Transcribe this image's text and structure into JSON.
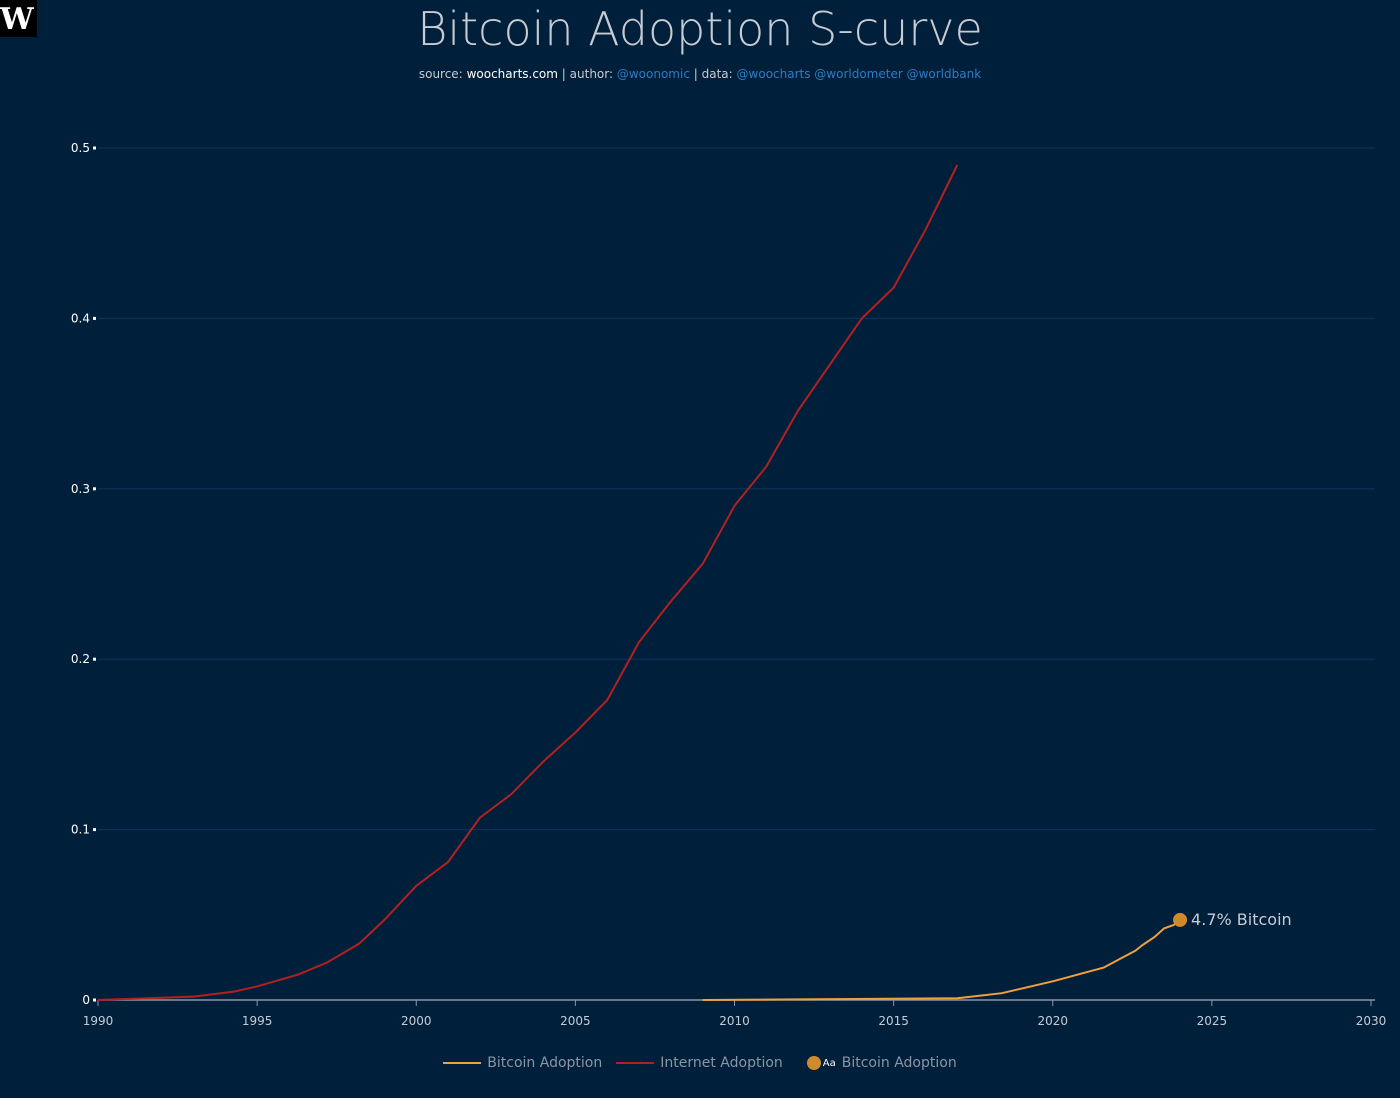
{
  "logo": "W",
  "chart_data": {
    "type": "line",
    "title": "Bitcoin Adoption S-curve",
    "subtitle": {
      "source_label": "source:",
      "source": "woocharts.com",
      "author_label": "| author:",
      "author": "@woonomic",
      "data_label": "| data:",
      "data_sources": "@woocharts @worldometer @worldbank"
    },
    "xlim": [
      1990,
      2030
    ],
    "ylim": [
      0,
      0.5
    ],
    "xticks": [
      "1990",
      "1995",
      "2000",
      "2005",
      "2010",
      "2015",
      "2020",
      "2025",
      "2030"
    ],
    "yticks": [
      "0",
      "0.1",
      "0.2",
      "0.3",
      "0.4",
      "0.5"
    ],
    "grid": true,
    "legend_placement": "bottom",
    "series": [
      {
        "name": "Bitcoin Adoption",
        "color": "#f0a03c",
        "x": [
          2009,
          2017,
          2018.4,
          2020,
          2021.6,
          2022.2,
          2022.6,
          2022.8,
          2023.2,
          2023.5,
          2023.8,
          2024
        ],
        "y": [
          0,
          0.001,
          0.004,
          0.011,
          0.019,
          0.025,
          0.029,
          0.032,
          0.037,
          0.042,
          0.044,
          0.047
        ]
      },
      {
        "name": "Internet Adoption",
        "color": "#b3201f",
        "x": [
          1990,
          1993,
          1994.3,
          1995,
          1996.3,
          1997.2,
          1998.2,
          1999,
          2000,
          2001,
          2002,
          2003,
          2004,
          2005,
          2006,
          2007,
          2008,
          2009,
          2010,
          2011,
          2012,
          2013,
          2014,
          2015,
          2016,
          2017
        ],
        "y": [
          0,
          0.002,
          0.005,
          0.008,
          0.015,
          0.022,
          0.033,
          0.047,
          0.067,
          0.081,
          0.107,
          0.121,
          0.14,
          0.157,
          0.176,
          0.21,
          0.234,
          0.256,
          0.29,
          0.313,
          0.346,
          0.373,
          0.4,
          0.418,
          0.452,
          0.49
        ]
      }
    ],
    "annotation": {
      "text": "4.7% Bitcoin",
      "x": 2024,
      "y": 0.047,
      "color": "#d08a2e"
    },
    "legend": [
      "Bitcoin Adoption",
      "Internet Adoption",
      "Bitcoin Adoption"
    ],
    "legend_marker_text": "Aa"
  }
}
